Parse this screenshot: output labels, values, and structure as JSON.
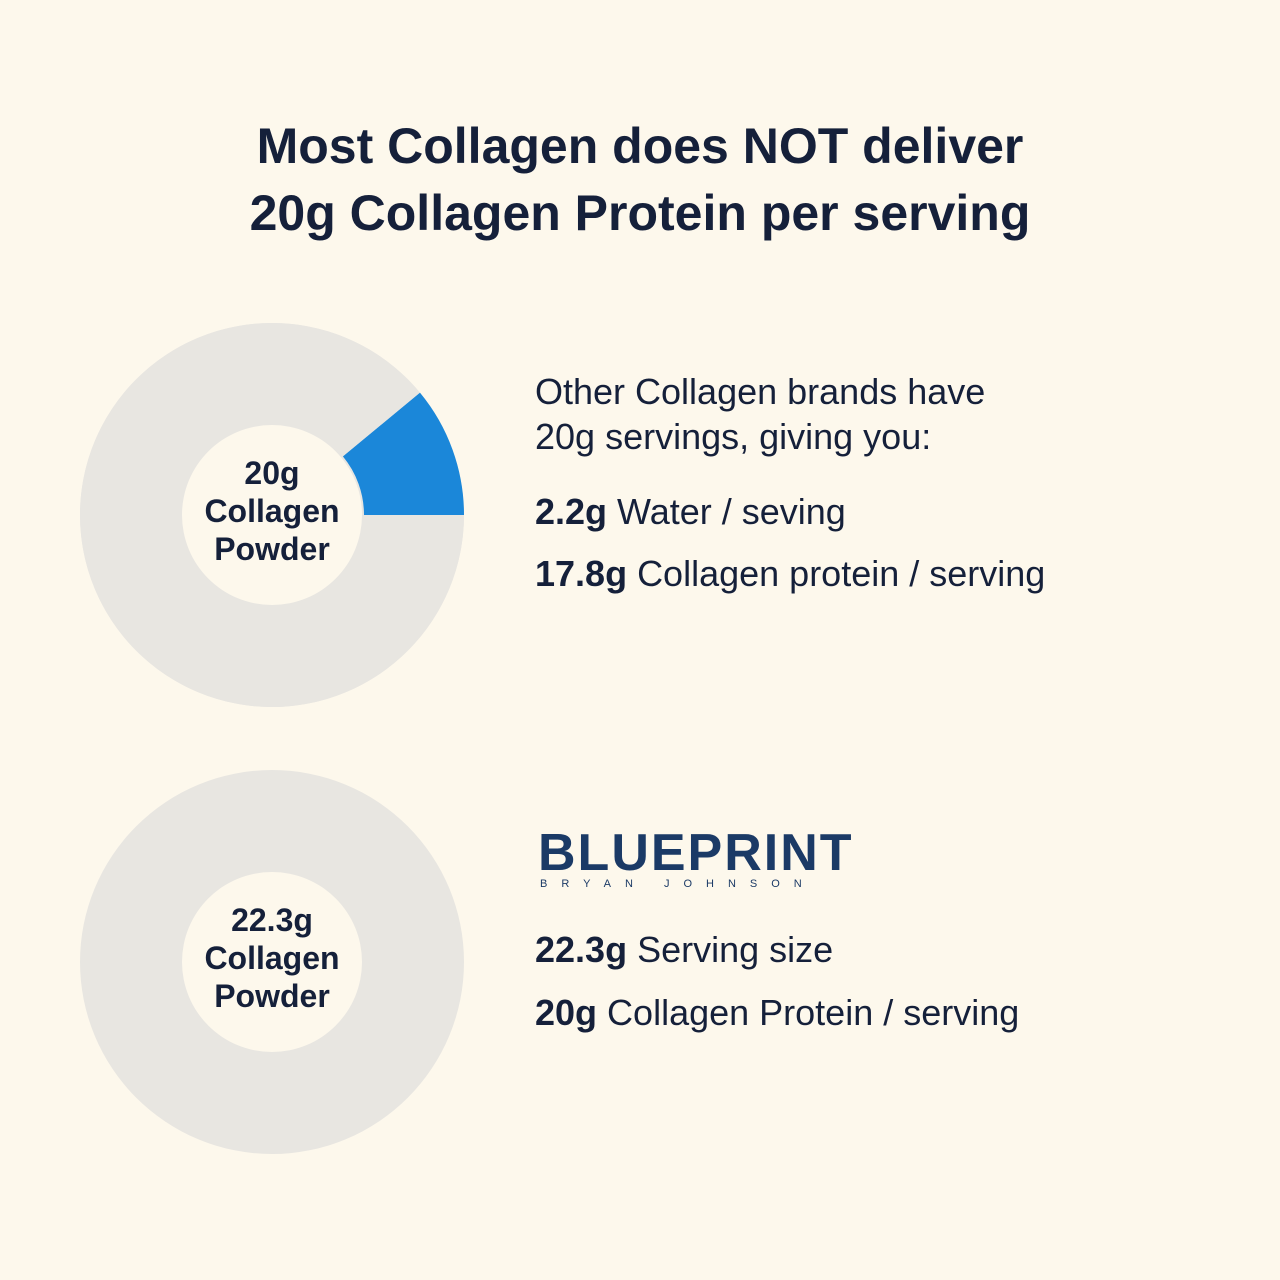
{
  "title": [
    "Most Collagen does NOT deliver",
    "20g Collagen Protein per serving"
  ],
  "panels": [
    {
      "donut_label": [
        "20g",
        "Collagen",
        "Powder"
      ],
      "intro": [
        "Other Collagen brands have",
        "20g servings, giving you:"
      ],
      "facts": [
        {
          "amount": "2.2g",
          "text": "Water / seving",
          "value": 2.2,
          "color": "#1b87d9"
        },
        {
          "amount": "17.8g",
          "text": "Collagen protein / serving",
          "value": 17.8,
          "color": "#e8e6e1"
        }
      ]
    },
    {
      "donut_label": [
        "22.3g",
        "Collagen",
        "Powder"
      ],
      "logo": {
        "name": "BLUEPRINT",
        "tagline": "BRYAN JOHNSON"
      },
      "facts": [
        {
          "amount": "22.3g",
          "text": "Serving size"
        },
        {
          "amount": "20g",
          "text": "Collagen Protein / serving"
        }
      ]
    }
  ]
}
